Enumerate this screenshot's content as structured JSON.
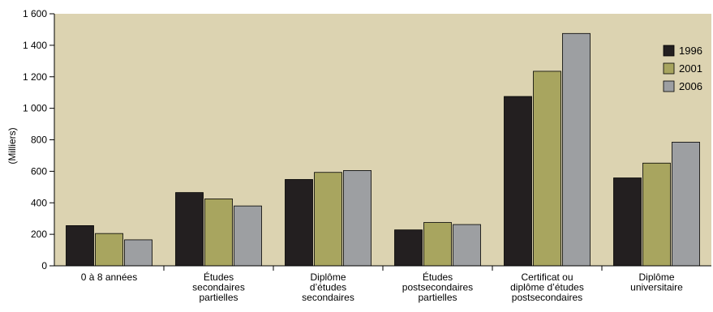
{
  "chart_data": {
    "type": "bar",
    "ylabel": "(Milliers)",
    "ylim": [
      0,
      1600
    ],
    "yticks": [
      0,
      200,
      400,
      600,
      800,
      1000,
      1200,
      1400,
      1600
    ],
    "ytick_labels": [
      "0",
      "200",
      "400",
      "600",
      "800",
      "1 000",
      "1 200",
      "1 400",
      "1 600"
    ],
    "grid": false,
    "legend_position": "top-right",
    "background": "#dcd3b1",
    "categories": [
      [
        "0 à 8 années"
      ],
      [
        "Études",
        "secondaires",
        "partielles"
      ],
      [
        "Diplôme",
        "d’études",
        "secondaires"
      ],
      [
        "Études",
        "postsecondaires",
        "partielles"
      ],
      [
        "Certificat ou",
        "diplôme d’études",
        "postsecondaires"
      ],
      [
        "Diplôme",
        "universitaire"
      ]
    ],
    "series": [
      {
        "name": "1996",
        "color": "#231f20",
        "values": [
          255,
          465,
          548,
          228,
          1075,
          558
        ]
      },
      {
        "name": "2001",
        "color": "#a8a55f",
        "values": [
          205,
          425,
          593,
          275,
          1235,
          652
        ]
      },
      {
        "name": "2006",
        "color": "#9d9fa2",
        "values": [
          165,
          380,
          605,
          262,
          1475,
          785
        ]
      }
    ]
  }
}
